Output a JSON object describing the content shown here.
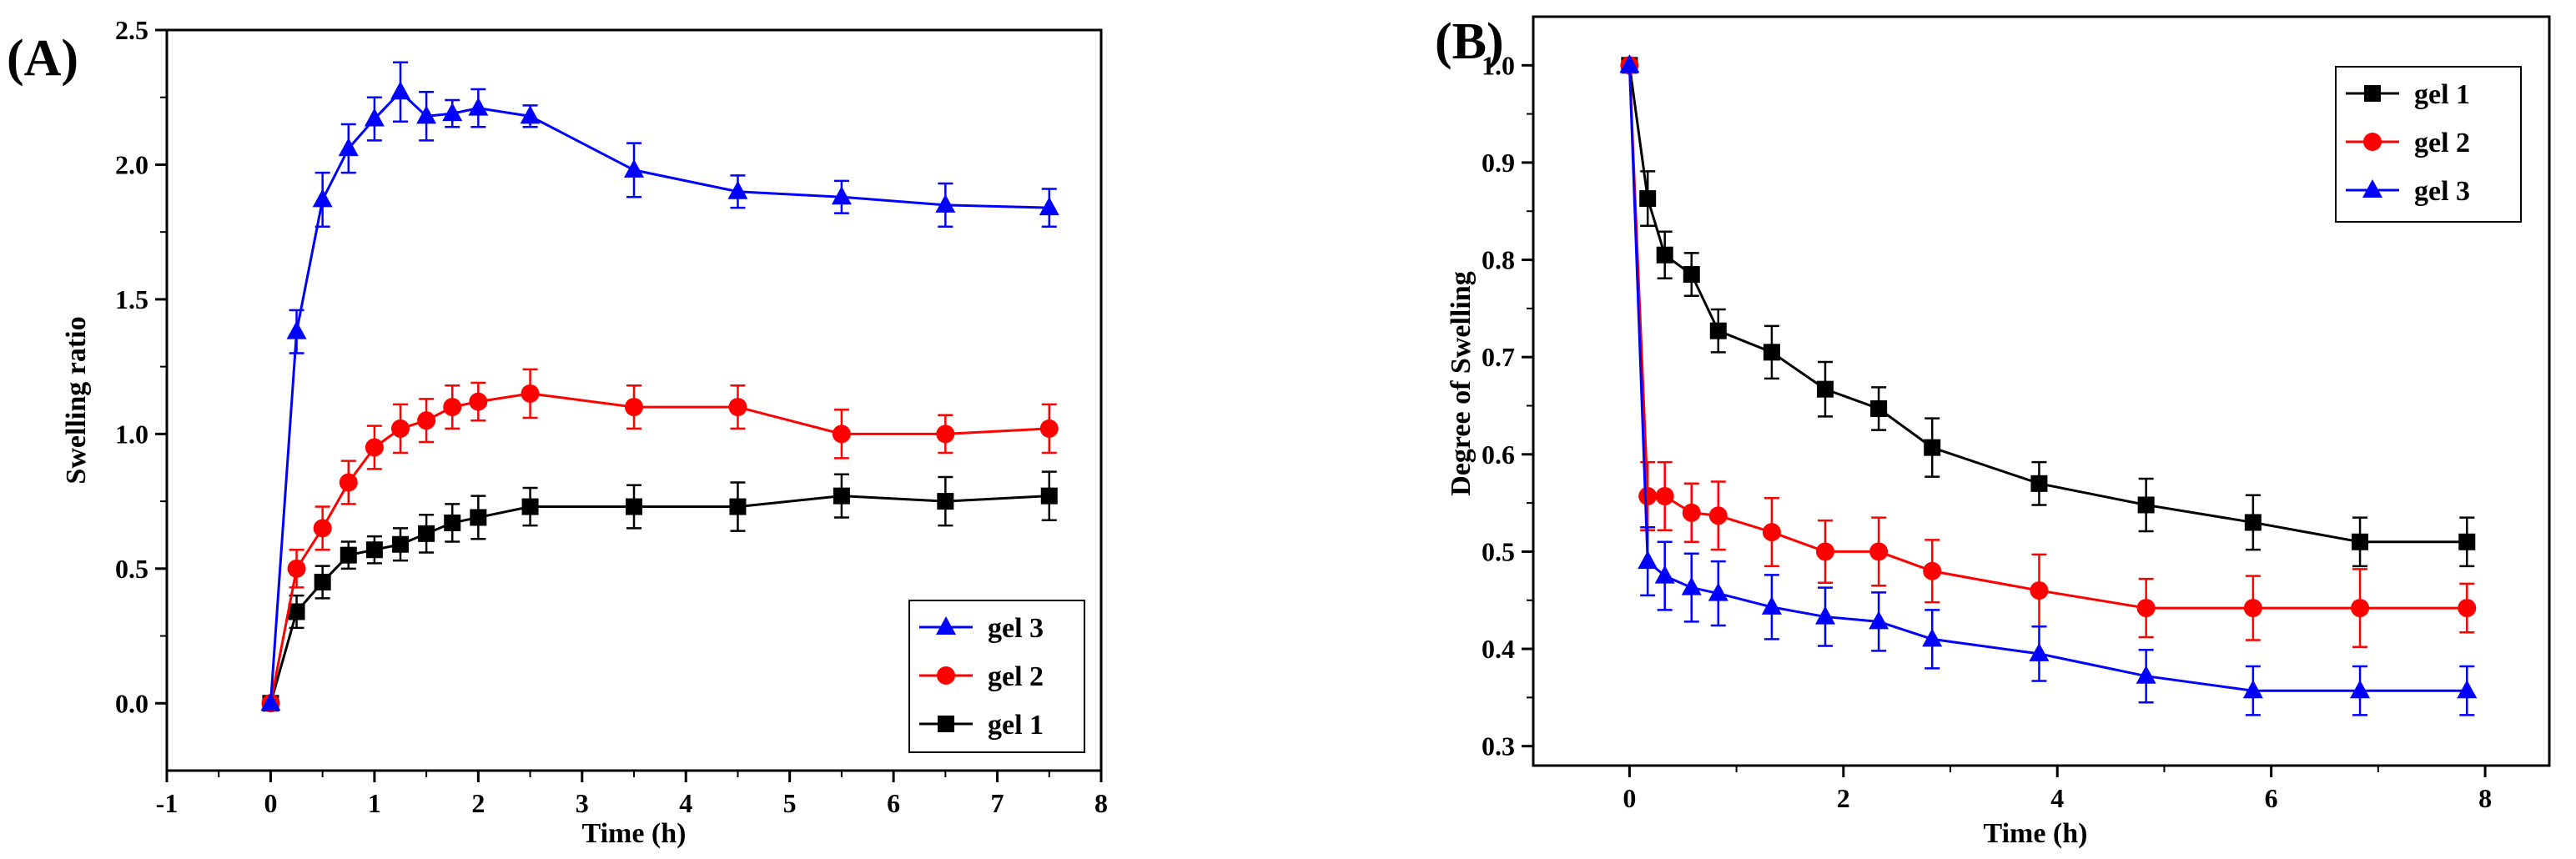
{
  "chart_data": [
    {
      "type": "line",
      "panel_label": "(A)",
      "xlabel": "Time (h)",
      "ylabel": "Swelling ratio",
      "xlim": [
        -1,
        8
      ],
      "ylim": [
        -0.25,
        2.5
      ],
      "xticks": [
        -1,
        0,
        1,
        2,
        3,
        4,
        5,
        6,
        7,
        8
      ],
      "xtick_labels": [
        "-1",
        "0",
        "1",
        "2",
        "3",
        "4",
        "5",
        "6",
        "7",
        "8"
      ],
      "yticks": [
        0,
        0.5,
        1,
        1.5,
        2,
        2.5
      ],
      "ytick_labels": [
        "0.0",
        "0.5",
        "1.0",
        "1.5",
        "2.0",
        "2.5"
      ],
      "grid": false,
      "legend_position": "bottom-right",
      "legend_order": [
        2,
        1,
        0
      ],
      "series": [
        {
          "name": "gel 1",
          "color": "#000000",
          "marker": "square",
          "x": [
            0,
            0.25,
            0.5,
            0.75,
            1,
            1.25,
            1.5,
            1.75,
            2,
            2.5,
            3.5,
            4.5,
            5.5,
            6.5,
            7.5
          ],
          "y": [
            0,
            0.34,
            0.45,
            0.55,
            0.57,
            0.59,
            0.63,
            0.67,
            0.69,
            0.73,
            0.73,
            0.73,
            0.77,
            0.75,
            0.77
          ],
          "err": [
            0,
            0.06,
            0.06,
            0.05,
            0.05,
            0.06,
            0.07,
            0.07,
            0.08,
            0.07,
            0.08,
            0.09,
            0.08,
            0.09,
            0.09
          ]
        },
        {
          "name": "gel 2",
          "color": "#ff0000",
          "marker": "circle",
          "x": [
            0,
            0.25,
            0.5,
            0.75,
            1,
            1.25,
            1.5,
            1.75,
            2,
            2.5,
            3.5,
            4.5,
            5.5,
            6.5,
            7.5
          ],
          "y": [
            0,
            0.5,
            0.65,
            0.82,
            0.95,
            1.02,
            1.05,
            1.1,
            1.12,
            1.15,
            1.1,
            1.1,
            1.0,
            1.0,
            1.02
          ],
          "err": [
            0,
            0.07,
            0.08,
            0.08,
            0.08,
            0.09,
            0.08,
            0.08,
            0.07,
            0.09,
            0.08,
            0.08,
            0.09,
            0.07,
            0.09
          ]
        },
        {
          "name": "gel 3",
          "color": "#0000ff",
          "marker": "triangle",
          "x": [
            0,
            0.25,
            0.5,
            0.75,
            1,
            1.25,
            1.5,
            1.75,
            2,
            2.5,
            3.5,
            4.5,
            5.5,
            6.5,
            7.5
          ],
          "y": [
            0,
            1.38,
            1.87,
            2.06,
            2.17,
            2.27,
            2.18,
            2.19,
            2.21,
            2.18,
            1.98,
            1.9,
            1.88,
            1.85,
            1.84
          ],
          "err": [
            0,
            0.08,
            0.1,
            0.09,
            0.08,
            0.11,
            0.09,
            0.05,
            0.07,
            0.04,
            0.1,
            0.06,
            0.06,
            0.08,
            0.07
          ]
        }
      ]
    },
    {
      "type": "line",
      "panel_label": "(B)",
      "xlabel": "Time (h)",
      "ylabel": "Degree of Swelling",
      "xlim": [
        -0.9,
        8.6
      ],
      "ylim": [
        0.28,
        1.05
      ],
      "xticks": [
        0,
        2,
        4,
        6,
        8
      ],
      "xtick_labels": [
        "0",
        "2",
        "4",
        "6",
        "8"
      ],
      "yticks": [
        0.3,
        0.4,
        0.5,
        0.6,
        0.7,
        0.8,
        0.9,
        1.0
      ],
      "ytick_labels": [
        "0.3",
        "0.4",
        "0.5",
        "0.6",
        "0.7",
        "0.8",
        "0.9",
        "1.0"
      ],
      "grid": false,
      "legend_position": "top-right",
      "legend_order": [
        0,
        1,
        2
      ],
      "series": [
        {
          "name": "gel 1",
          "color": "#000000",
          "marker": "square",
          "x": [
            0,
            0.17,
            0.33,
            0.58,
            0.83,
            1.33,
            1.83,
            2.33,
            2.83,
            3.83,
            4.83,
            5.83,
            6.83,
            7.83
          ],
          "y": [
            1.0,
            0.863,
            0.805,
            0.785,
            0.727,
            0.705,
            0.667,
            0.647,
            0.607,
            0.57,
            0.548,
            0.53,
            0.51,
            0.51
          ],
          "err": [
            0,
            0.028,
            0.024,
            0.022,
            0.022,
            0.027,
            0.028,
            0.022,
            0.03,
            0.022,
            0.027,
            0.028,
            0.025,
            0.025
          ]
        },
        {
          "name": "gel 2",
          "color": "#ff0000",
          "marker": "circle",
          "x": [
            0,
            0.17,
            0.33,
            0.58,
            0.83,
            1.33,
            1.83,
            2.33,
            2.83,
            3.83,
            4.83,
            5.83,
            6.83,
            7.83
          ],
          "y": [
            1.0,
            0.557,
            0.557,
            0.54,
            0.537,
            0.52,
            0.5,
            0.5,
            0.48,
            0.46,
            0.442,
            0.442,
            0.442,
            0.442
          ],
          "err": [
            0,
            0.035,
            0.035,
            0.03,
            0.035,
            0.035,
            0.032,
            0.035,
            0.032,
            0.037,
            0.03,
            0.033,
            0.04,
            0.025
          ]
        },
        {
          "name": "gel 3",
          "color": "#0000ff",
          "marker": "triangle",
          "x": [
            0,
            0.17,
            0.33,
            0.58,
            0.83,
            1.33,
            1.83,
            2.33,
            2.83,
            3.83,
            4.83,
            5.83,
            6.83,
            7.83
          ],
          "y": [
            1.0,
            0.49,
            0.475,
            0.463,
            0.457,
            0.443,
            0.433,
            0.428,
            0.41,
            0.395,
            0.372,
            0.357,
            0.357,
            0.357
          ],
          "err": [
            0,
            0.035,
            0.035,
            0.035,
            0.033,
            0.033,
            0.03,
            0.03,
            0.03,
            0.028,
            0.027,
            0.025,
            0.025,
            0.025
          ]
        }
      ]
    }
  ]
}
